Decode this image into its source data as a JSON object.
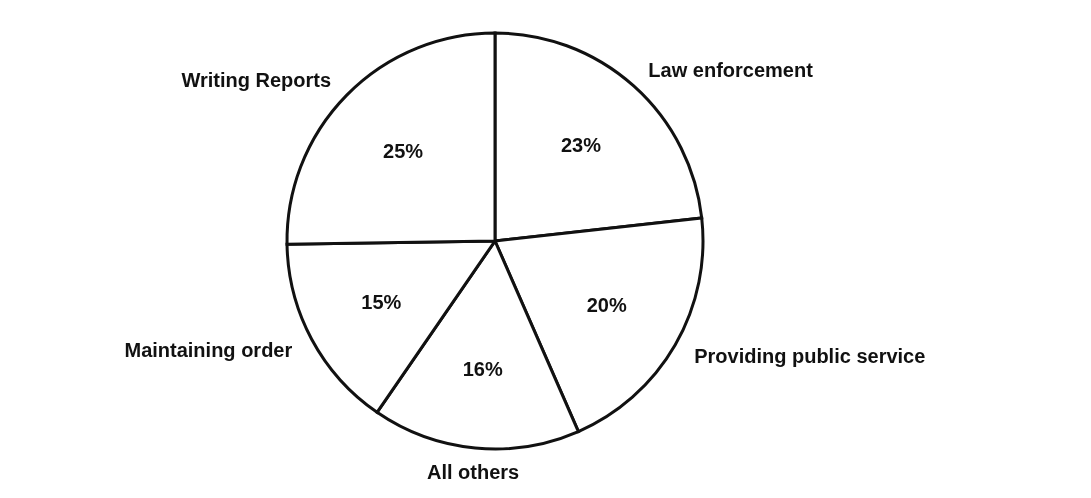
{
  "chart_data": {
    "type": "pie",
    "categories": [
      "Law enforcement",
      "Providing public service",
      "All others",
      "Maintaining order",
      "Writing Reports"
    ],
    "values": [
      23,
      20,
      16,
      15,
      25
    ],
    "value_labels": [
      "23%",
      "20%",
      "16%",
      "15%",
      "25%"
    ],
    "colors": [
      "#ffffff",
      "#ffffff",
      "#ffffff",
      "#ffffff",
      "#ffffff"
    ]
  }
}
